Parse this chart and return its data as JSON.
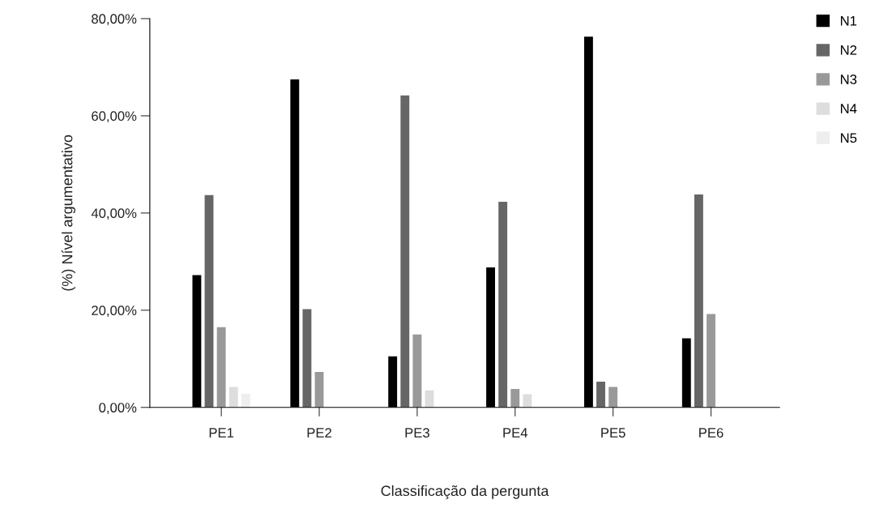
{
  "chart_data": {
    "type": "bar",
    "xlabel": "Classificação da pergunta",
    "ylabel": "(%) Nível argumentativo",
    "categories": [
      "PE1",
      "PE2",
      "PE3",
      "PE4",
      "PE5",
      "PE6"
    ],
    "series": [
      {
        "name": "N1",
        "color": "#000000",
        "values": [
          27.2,
          67.5,
          10.5,
          28.8,
          76.3,
          14.2
        ]
      },
      {
        "name": "N2",
        "color": "#666666",
        "values": [
          43.7,
          20.2,
          64.2,
          42.3,
          5.3,
          43.8
        ]
      },
      {
        "name": "N3",
        "color": "#999999",
        "values": [
          16.5,
          7.3,
          15.0,
          3.8,
          4.2,
          19.2
        ]
      },
      {
        "name": "N4",
        "color": "#dddddd",
        "values": [
          4.2,
          null,
          3.5,
          2.7,
          null,
          null
        ]
      },
      {
        "name": "N5",
        "color": "#eeeeee",
        "values": [
          2.8,
          null,
          null,
          null,
          null,
          null
        ]
      }
    ],
    "ylim": [
      0,
      80
    ],
    "yticks": [
      {
        "value": 0,
        "label": "0,00%"
      },
      {
        "value": 20,
        "label": "20,00%"
      },
      {
        "value": 40,
        "label": "40,00%"
      },
      {
        "value": 60,
        "label": "60,00%"
      },
      {
        "value": 80,
        "label": "80,00%"
      }
    ],
    "grid": false,
    "legend": "top right"
  }
}
